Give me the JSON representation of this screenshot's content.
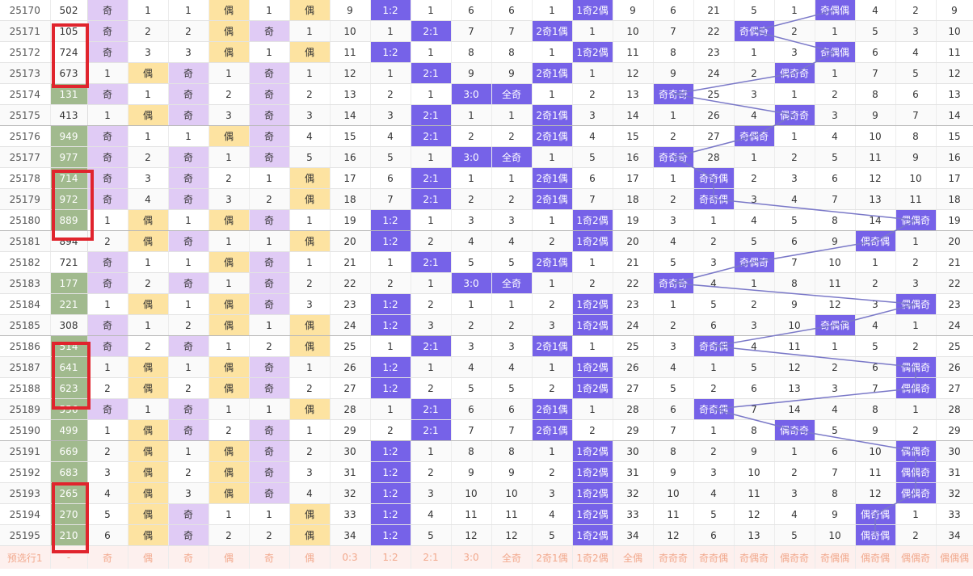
{
  "footer_label": "预选行1",
  "footer_cells": [
    "-",
    "奇",
    "偶",
    "奇",
    "偶",
    "奇",
    "偶",
    "0:3",
    "1:2",
    "2:1",
    "3:0",
    "全奇",
    "2奇1偶",
    "1奇2偶",
    "全偶",
    "奇奇奇",
    "奇奇偶",
    "奇偶奇",
    "偶奇奇",
    "奇偶偶",
    "偶奇偶",
    "偶偶奇",
    "偶偶偶"
  ],
  "rows": [
    {
      "issue": "25170",
      "num": "502",
      "cells": [
        "奇",
        "1",
        "1",
        "偶",
        "1",
        "偶",
        "9",
        "1:2",
        "1",
        "6",
        "6",
        "1",
        "1奇2偶",
        "9",
        "6",
        "21",
        "5",
        "1",
        "奇偶偶",
        "4",
        "2",
        "9"
      ]
    },
    {
      "issue": "25171",
      "num": "105",
      "cells": [
        "奇",
        "2",
        "2",
        "偶",
        "奇",
        "1",
        "10",
        "1",
        "2:1",
        "7",
        "7",
        "2奇1偶",
        "1",
        "10",
        "7",
        "22",
        "奇偶奇",
        "2",
        "1",
        "5",
        "3",
        "10"
      ]
    },
    {
      "issue": "25172",
      "num": "724",
      "cells": [
        "奇",
        "3",
        "3",
        "偶",
        "1",
        "偶",
        "11",
        "1:2",
        "1",
        "8",
        "8",
        "1",
        "1奇2偶",
        "11",
        "8",
        "23",
        "1",
        "3",
        "奇偶偶",
        "6",
        "4",
        "11"
      ]
    },
    {
      "issue": "25173",
      "num": "673",
      "cells": [
        "1",
        "偶",
        "奇",
        "1",
        "奇",
        "1",
        "12",
        "1",
        "2:1",
        "9",
        "9",
        "2奇1偶",
        "1",
        "12",
        "9",
        "24",
        "2",
        "偶奇奇",
        "1",
        "7",
        "5",
        "12"
      ]
    },
    {
      "issue": "25174",
      "num": "131",
      "cells": [
        "奇",
        "1",
        "奇",
        "2",
        "奇",
        "2",
        "13",
        "2",
        "1",
        "3:0",
        "全奇",
        "1",
        "2",
        "13",
        "奇奇奇",
        "25",
        "3",
        "1",
        "2",
        "8",
        "6",
        "13"
      ]
    },
    {
      "issue": "25175",
      "num": "413",
      "cells": [
        "1",
        "偶",
        "奇",
        "3",
        "奇",
        "3",
        "14",
        "3",
        "2:1",
        "1",
        "1",
        "2奇1偶",
        "3",
        "14",
        "1",
        "26",
        "4",
        "偶奇奇",
        "3",
        "9",
        "7",
        "14"
      ]
    },
    {
      "issue": "25176",
      "num": "949",
      "cells": [
        "奇",
        "1",
        "1",
        "偶",
        "奇",
        "4",
        "15",
        "4",
        "2:1",
        "2",
        "2",
        "2奇1偶",
        "4",
        "15",
        "2",
        "27",
        "奇偶奇",
        "1",
        "4",
        "10",
        "8",
        "15"
      ]
    },
    {
      "issue": "25177",
      "num": "977",
      "cells": [
        "奇",
        "2",
        "奇",
        "1",
        "奇",
        "5",
        "16",
        "5",
        "1",
        "3:0",
        "全奇",
        "1",
        "5",
        "16",
        "奇奇奇",
        "28",
        "1",
        "2",
        "5",
        "11",
        "9",
        "16"
      ]
    },
    {
      "issue": "25178",
      "num": "714",
      "cells": [
        "奇",
        "3",
        "奇",
        "2",
        "1",
        "偶",
        "17",
        "6",
        "2:1",
        "1",
        "1",
        "2奇1偶",
        "6",
        "17",
        "1",
        "奇奇偶",
        "2",
        "3",
        "6",
        "12",
        "10",
        "17"
      ]
    },
    {
      "issue": "25179",
      "num": "972",
      "cells": [
        "奇",
        "4",
        "奇",
        "3",
        "2",
        "偶",
        "18",
        "7",
        "2:1",
        "2",
        "2",
        "2奇1偶",
        "7",
        "18",
        "2",
        "奇奇偶",
        "3",
        "4",
        "7",
        "13",
        "11",
        "18"
      ]
    },
    {
      "issue": "25180",
      "num": "889",
      "cells": [
        "1",
        "偶",
        "1",
        "偶",
        "奇",
        "1",
        "19",
        "1:2",
        "1",
        "3",
        "3",
        "1",
        "1奇2偶",
        "19",
        "3",
        "1",
        "4",
        "5",
        "8",
        "14",
        "偶偶奇",
        "19"
      ]
    },
    {
      "issue": "25181",
      "num": "894",
      "cells": [
        "2",
        "偶",
        "奇",
        "1",
        "1",
        "偶",
        "20",
        "1:2",
        "2",
        "4",
        "4",
        "2",
        "1奇2偶",
        "20",
        "4",
        "2",
        "5",
        "6",
        "9",
        "偶奇偶",
        "1",
        "20"
      ]
    },
    {
      "issue": "25182",
      "num": "721",
      "cells": [
        "奇",
        "1",
        "1",
        "偶",
        "奇",
        "1",
        "21",
        "1",
        "2:1",
        "5",
        "5",
        "2奇1偶",
        "1",
        "21",
        "5",
        "3",
        "奇偶奇",
        "7",
        "10",
        "1",
        "2",
        "21"
      ]
    },
    {
      "issue": "25183",
      "num": "177",
      "cells": [
        "奇",
        "2",
        "奇",
        "1",
        "奇",
        "2",
        "22",
        "2",
        "1",
        "3:0",
        "全奇",
        "1",
        "2",
        "22",
        "奇奇奇",
        "4",
        "1",
        "8",
        "11",
        "2",
        "3",
        "22"
      ]
    },
    {
      "issue": "25184",
      "num": "221",
      "cells": [
        "1",
        "偶",
        "1",
        "偶",
        "奇",
        "3",
        "23",
        "1:2",
        "2",
        "1",
        "1",
        "2",
        "1奇2偶",
        "23",
        "1",
        "5",
        "2",
        "9",
        "12",
        "3",
        "偶偶奇",
        "23"
      ]
    },
    {
      "issue": "25185",
      "num": "308",
      "cells": [
        "奇",
        "1",
        "2",
        "偶",
        "1",
        "偶",
        "24",
        "1:2",
        "3",
        "2",
        "2",
        "3",
        "1奇2偶",
        "24",
        "2",
        "6",
        "3",
        "10",
        "奇偶偶",
        "4",
        "1",
        "24"
      ]
    },
    {
      "issue": "25186",
      "num": "514",
      "cells": [
        "奇",
        "2",
        "奇",
        "1",
        "2",
        "偶",
        "25",
        "1",
        "2:1",
        "3",
        "3",
        "2奇1偶",
        "1",
        "25",
        "3",
        "奇奇偶",
        "4",
        "11",
        "1",
        "5",
        "2",
        "25"
      ]
    },
    {
      "issue": "25187",
      "num": "641",
      "cells": [
        "1",
        "偶",
        "1",
        "偶",
        "奇",
        "1",
        "26",
        "1:2",
        "1",
        "4",
        "4",
        "1",
        "1奇2偶",
        "26",
        "4",
        "1",
        "5",
        "12",
        "2",
        "6",
        "偶偶奇",
        "26"
      ]
    },
    {
      "issue": "25188",
      "num": "623",
      "cells": [
        "2",
        "偶",
        "2",
        "偶",
        "奇",
        "2",
        "27",
        "1:2",
        "2",
        "5",
        "5",
        "2",
        "1奇2偶",
        "27",
        "5",
        "2",
        "6",
        "13",
        "3",
        "7",
        "偶偶奇",
        "27"
      ]
    },
    {
      "issue": "25189",
      "num": "556",
      "cells": [
        "奇",
        "1",
        "奇",
        "1",
        "1",
        "偶",
        "28",
        "1",
        "2:1",
        "6",
        "6",
        "2奇1偶",
        "1",
        "28",
        "6",
        "奇奇偶",
        "7",
        "14",
        "4",
        "8",
        "1",
        "28"
      ]
    },
    {
      "issue": "25190",
      "num": "499",
      "cells": [
        "1",
        "偶",
        "奇",
        "2",
        "奇",
        "1",
        "29",
        "2",
        "2:1",
        "7",
        "7",
        "2奇1偶",
        "2",
        "29",
        "7",
        "1",
        "8",
        "偶奇奇",
        "5",
        "9",
        "2",
        "29"
      ]
    },
    {
      "issue": "25191",
      "num": "669",
      "cells": [
        "2",
        "偶",
        "1",
        "偶",
        "奇",
        "2",
        "30",
        "1:2",
        "1",
        "8",
        "8",
        "1",
        "1奇2偶",
        "30",
        "8",
        "2",
        "9",
        "1",
        "6",
        "10",
        "偶偶奇",
        "30"
      ]
    },
    {
      "issue": "25192",
      "num": "683",
      "cells": [
        "3",
        "偶",
        "2",
        "偶",
        "奇",
        "3",
        "31",
        "1:2",
        "2",
        "9",
        "9",
        "2",
        "1奇2偶",
        "31",
        "9",
        "3",
        "10",
        "2",
        "7",
        "11",
        "偶偶奇",
        "31"
      ]
    },
    {
      "issue": "25193",
      "num": "265",
      "cells": [
        "4",
        "偶",
        "3",
        "偶",
        "奇",
        "4",
        "32",
        "1:2",
        "3",
        "10",
        "10",
        "3",
        "1奇2偶",
        "32",
        "10",
        "4",
        "11",
        "3",
        "8",
        "12",
        "偶偶奇",
        "32"
      ]
    },
    {
      "issue": "25194",
      "num": "270",
      "cells": [
        "5",
        "偶",
        "奇",
        "1",
        "1",
        "偶",
        "33",
        "1:2",
        "4",
        "11",
        "11",
        "4",
        "1奇2偶",
        "33",
        "11",
        "5",
        "12",
        "4",
        "9",
        "偶奇偶",
        "1",
        "33"
      ]
    },
    {
      "issue": "25195",
      "num": "210",
      "cells": [
        "6",
        "偶",
        "奇",
        "2",
        "2",
        "偶",
        "34",
        "1:2",
        "5",
        "12",
        "12",
        "5",
        "1奇2偶",
        "34",
        "12",
        "6",
        "13",
        "5",
        "10",
        "偶奇偶",
        "2",
        "34"
      ]
    }
  ],
  "highlight_nums": [
    "949",
    "977",
    "714",
    "972",
    "889",
    "177",
    "221",
    "514",
    "641",
    "623",
    "556",
    "499",
    "669",
    "683",
    "265",
    "270",
    "210",
    "131"
  ],
  "colors": {
    "green": "#a1ba8e",
    "purple": "#e0cbf5",
    "yellow": "#fde3a1",
    "blue": "#7662e8",
    "red": "#e0242d",
    "line": "#7a78c8"
  }
}
